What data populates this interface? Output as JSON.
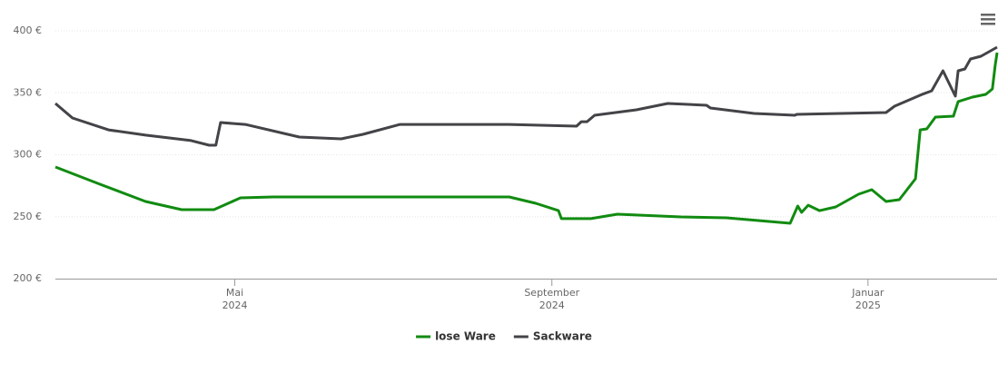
{
  "chart_data": {
    "type": "line",
    "xlim": [
      2024.144,
      2025.136
    ],
    "xticks": [
      {
        "value": 2024.333,
        "label": "Mai 2024"
      },
      {
        "value": 2024.667,
        "label": "September 2024"
      },
      {
        "value": 2025.0,
        "label": "Januar 2025"
      }
    ],
    "ylim": [
      200,
      400
    ],
    "yticks": [
      {
        "value": 200,
        "label": "200 €"
      },
      {
        "value": 250,
        "label": "250 €"
      },
      {
        "value": 300,
        "label": "300 €"
      },
      {
        "value": 350,
        "label": "350 €"
      },
      {
        "value": 400,
        "label": "400 €"
      }
    ],
    "grid": true,
    "legend": "bottom",
    "series": [
      {
        "name": "lose Ware",
        "color": "#118b11",
        "x": [
          2024.144,
          2024.191,
          2024.239,
          2024.277,
          2024.311,
          2024.339,
          2024.373,
          2024.622,
          2024.65,
          2024.674,
          2024.677,
          2024.708,
          2024.736,
          2024.803,
          2024.851,
          2024.918,
          2024.926,
          2024.93,
          2024.937,
          2024.949,
          2024.966,
          2024.99,
          2025.004,
          2025.019,
          2025.033,
          2025.05,
          2025.055,
          2025.062,
          2025.071,
          2025.09,
          2025.095,
          2025.11,
          2025.124,
          2025.131,
          2025.134,
          2025.136
        ],
        "values": [
          290.1,
          276.2,
          262.3,
          255.7,
          255.7,
          265.2,
          265.9,
          265.9,
          260.8,
          254.9,
          248.4,
          248.4,
          252,
          249.8,
          249.1,
          244.7,
          258.6,
          253.5,
          259.3,
          254.9,
          257.9,
          268.1,
          271.8,
          262.3,
          263.7,
          280.6,
          320.1,
          320.9,
          330.4,
          331.1,
          342.9,
          346.5,
          348.7,
          353.1,
          372.2,
          382.4
        ]
      },
      {
        "name": "Sackware",
        "color": "#434348",
        "x": [
          2024.144,
          2024.162,
          2024.2,
          2024.239,
          2024.287,
          2024.306,
          2024.313,
          2024.318,
          2024.344,
          2024.401,
          2024.445,
          2024.468,
          2024.507,
          2024.622,
          2024.693,
          2024.698,
          2024.704,
          2024.712,
          2024.756,
          2024.789,
          2024.83,
          2024.834,
          2024.88,
          2024.923,
          2024.925,
          2025.019,
          2025.028,
          2025.057,
          2025.067,
          2025.079,
          2025.086,
          2025.092,
          2025.095,
          2025.102,
          2025.108,
          2025.119,
          2025.136
        ],
        "values": [
          341.4,
          329.7,
          320.1,
          315.8,
          311.4,
          307.7,
          307.7,
          326,
          324.5,
          314.3,
          312.8,
          316.5,
          324.5,
          324.5,
          323.1,
          326.7,
          326.7,
          331.9,
          336.3,
          341.4,
          339.9,
          337.7,
          333.3,
          331.9,
          332.6,
          334.1,
          339.2,
          348.7,
          351.6,
          367.8,
          356.8,
          347.3,
          367.8,
          369.2,
          377.3,
          379.5,
          386.8
        ]
      }
    ]
  }
}
